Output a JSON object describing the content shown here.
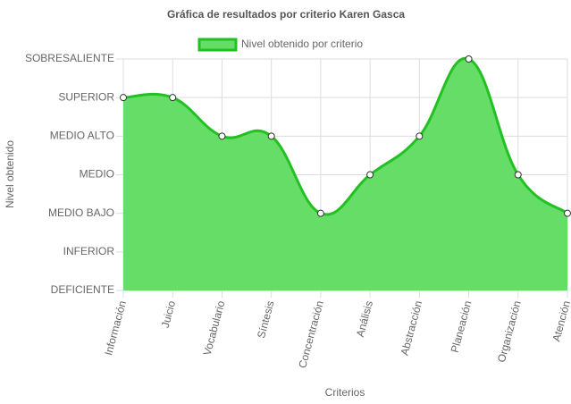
{
  "chart_data": {
    "type": "area",
    "title": "Gráfica de resultados por criterio Karen Gasca",
    "x_label": "Criterios",
    "y_label": "Nivel obtenido",
    "categories": [
      "Información",
      "Juicio",
      "Vocabulario",
      "Síntesis",
      "Concentración",
      "Análisis",
      "Abstracción",
      "Planeación",
      "Organización",
      "Atención"
    ],
    "series": [
      {
        "name": "Nivel obtenido por criterio",
        "color": "#22c022",
        "fill": "#66dd66",
        "values": [
          5,
          5,
          4,
          4,
          2,
          3,
          4,
          6,
          3,
          2
        ]
      }
    ],
    "ylim": [
      0,
      6
    ],
    "yticks": [
      {
        "value": 0,
        "label": "DEFICIENTE"
      },
      {
        "value": 1,
        "label": "INFERIOR"
      },
      {
        "value": 2,
        "label": "MEDIO BAJO"
      },
      {
        "value": 3,
        "label": "MEDIO"
      },
      {
        "value": 4,
        "label": "MEDIO ALTO"
      },
      {
        "value": 5,
        "label": "SUPERIOR"
      },
      {
        "value": 6,
        "label": "SOBRESALIENTE"
      }
    ],
    "grid": true,
    "legend": "top"
  }
}
